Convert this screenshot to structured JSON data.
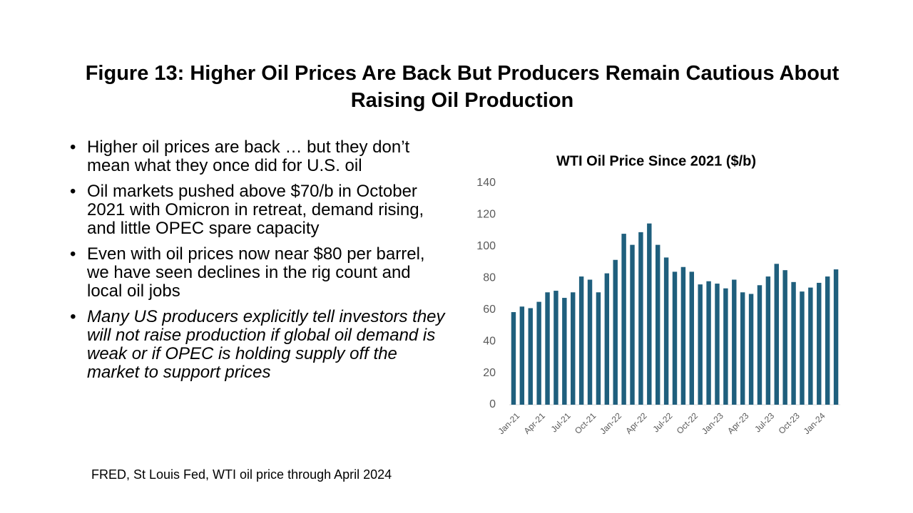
{
  "header": {
    "title": "Figure 13: Higher Oil Prices Are Back But Producers Remain Cautious About Raising Oil Production"
  },
  "bullets": [
    "Higher oil prices are back … but they don’t mean what they once did for U.S. oil",
    "Oil markets pushed above $70/b in October 2021 with Omicron in retreat, demand rising, and little OPEC spare capacity",
    "Even with oil prices now near $80 per barrel, we have seen declines in the rig count and local oil jobs",
    "Many US producers explicitly tell investors they will not raise production if global oil demand is weak or if OPEC is holding supply off the market to support prices"
  ],
  "source": "FRED, St Louis Fed, WTI oil price through April 2024",
  "chart_data": {
    "type": "bar",
    "title": "WTI Oil Price Since 2021 ($/b)",
    "categories": [
      "Jan-21",
      null,
      null,
      "Apr-21",
      null,
      null,
      "Jul-21",
      null,
      null,
      "Oct-21",
      null,
      null,
      "Jan-22",
      null,
      null,
      "Apr-22",
      null,
      null,
      "Jul-22",
      null,
      null,
      "Oct-22",
      null,
      null,
      "Jan-23",
      null,
      null,
      "Apr-23",
      null,
      null,
      "Jul-23",
      null,
      null,
      "Oct-23",
      null,
      null,
      "Jan-24",
      null,
      null
    ],
    "values": [
      58.5,
      62,
      61,
      65,
      71,
      72,
      67.5,
      71,
      81,
      79,
      71,
      83,
      91.5,
      108,
      101,
      109,
      114.5,
      101,
      93,
      84,
      87,
      84,
      76,
      78,
      76.5,
      73.5,
      79,
      71,
      70,
      75.5,
      81,
      89,
      85,
      77.5,
      71.5,
      74,
      77,
      81,
      85.5
    ],
    "color": "#1f5f7d",
    "ylim": [
      0,
      140
    ],
    "yticks": [
      0,
      20,
      40,
      60,
      80,
      100,
      120,
      140
    ],
    "grid": false
  }
}
